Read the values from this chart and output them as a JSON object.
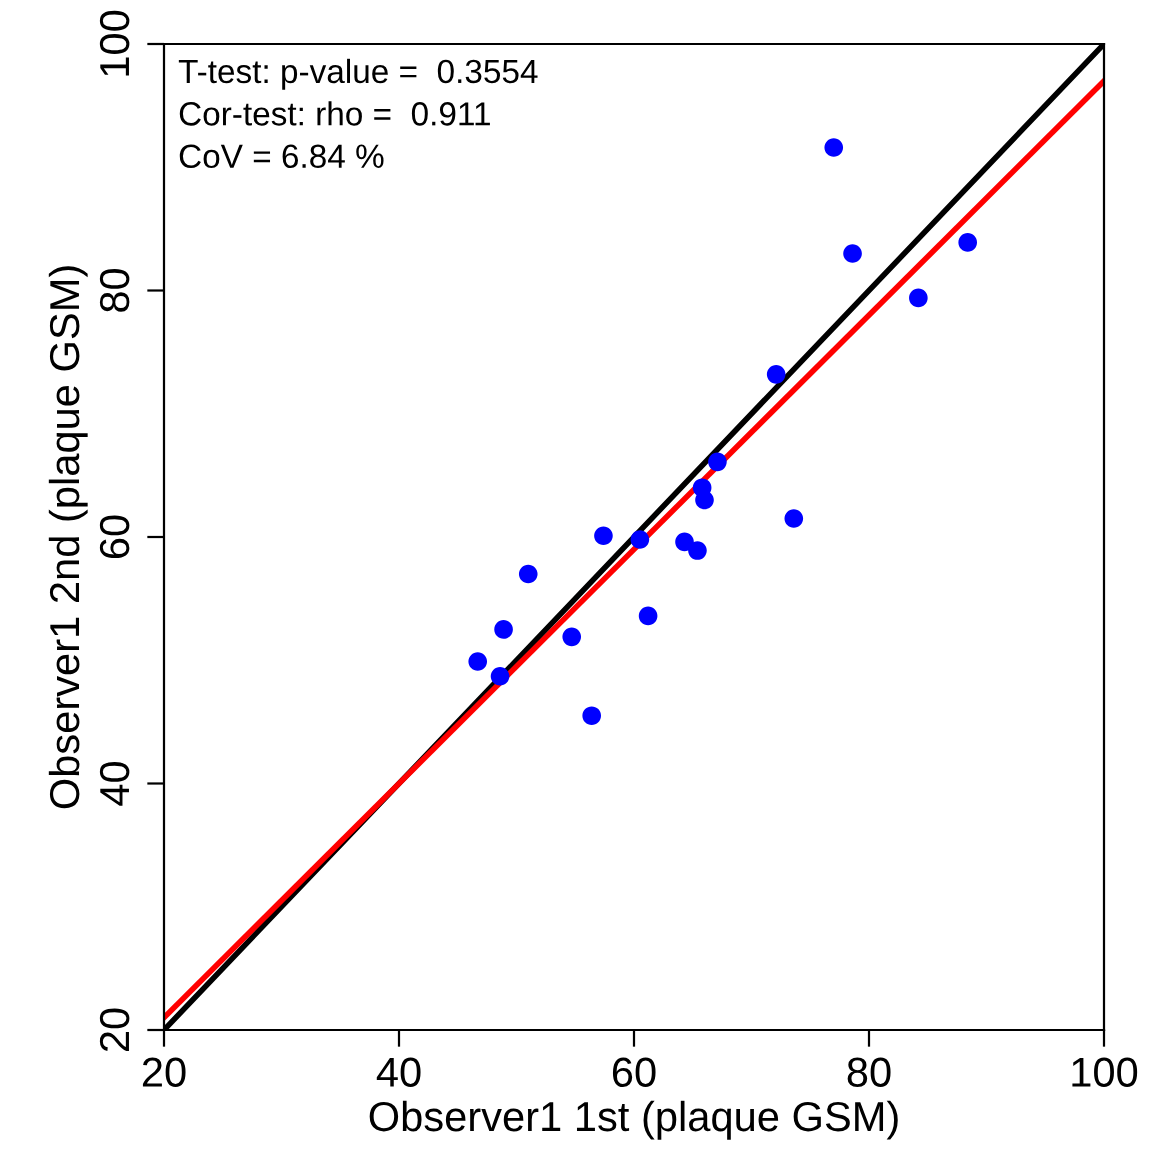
{
  "chart_data": {
    "type": "scatter",
    "xlabel": "Observer1 1st (plaque GSM)",
    "ylabel": "Observer1 2nd (plaque GSM)",
    "annotations": [
      "T-test: p-value =  0.3554",
      "Cor-test: rho =  0.911",
      "CoV = 6.84 %"
    ],
    "xlim": [
      20,
      100
    ],
    "ylim": [
      20,
      100
    ],
    "xticks": [
      20,
      40,
      60,
      80,
      100
    ],
    "yticks": [
      20,
      40,
      60,
      80,
      100
    ],
    "grid": false,
    "legend": false,
    "series": [
      {
        "type": "line",
        "color": "#000000",
        "x": [
          20,
          100
        ],
        "values": [
          20,
          100
        ],
        "line_style": "solid",
        "marker": "none"
      },
      {
        "type": "line",
        "color": "#ff0000",
        "x": [
          20,
          100
        ],
        "values": [
          21,
          97
        ],
        "line_style": "solid",
        "marker": "none"
      },
      {
        "marker": "circle",
        "color": "#0000ff",
        "x": [
          77.0,
          78.6,
          88.4,
          84.2,
          72.1,
          67.1,
          65.8,
          66.0,
          60.5,
          57.4,
          64.3,
          65.4,
          73.6,
          51.0,
          48.9,
          61.2,
          54.7,
          46.7,
          48.6,
          56.4
        ],
        "values": [
          91.6,
          83.0,
          83.9,
          79.4,
          73.2,
          66.1,
          64.0,
          63.0,
          59.8,
          60.1,
          59.6,
          58.9,
          61.5,
          57.0,
          52.5,
          53.6,
          51.9,
          49.9,
          48.7,
          45.5
        ]
      }
    ]
  }
}
